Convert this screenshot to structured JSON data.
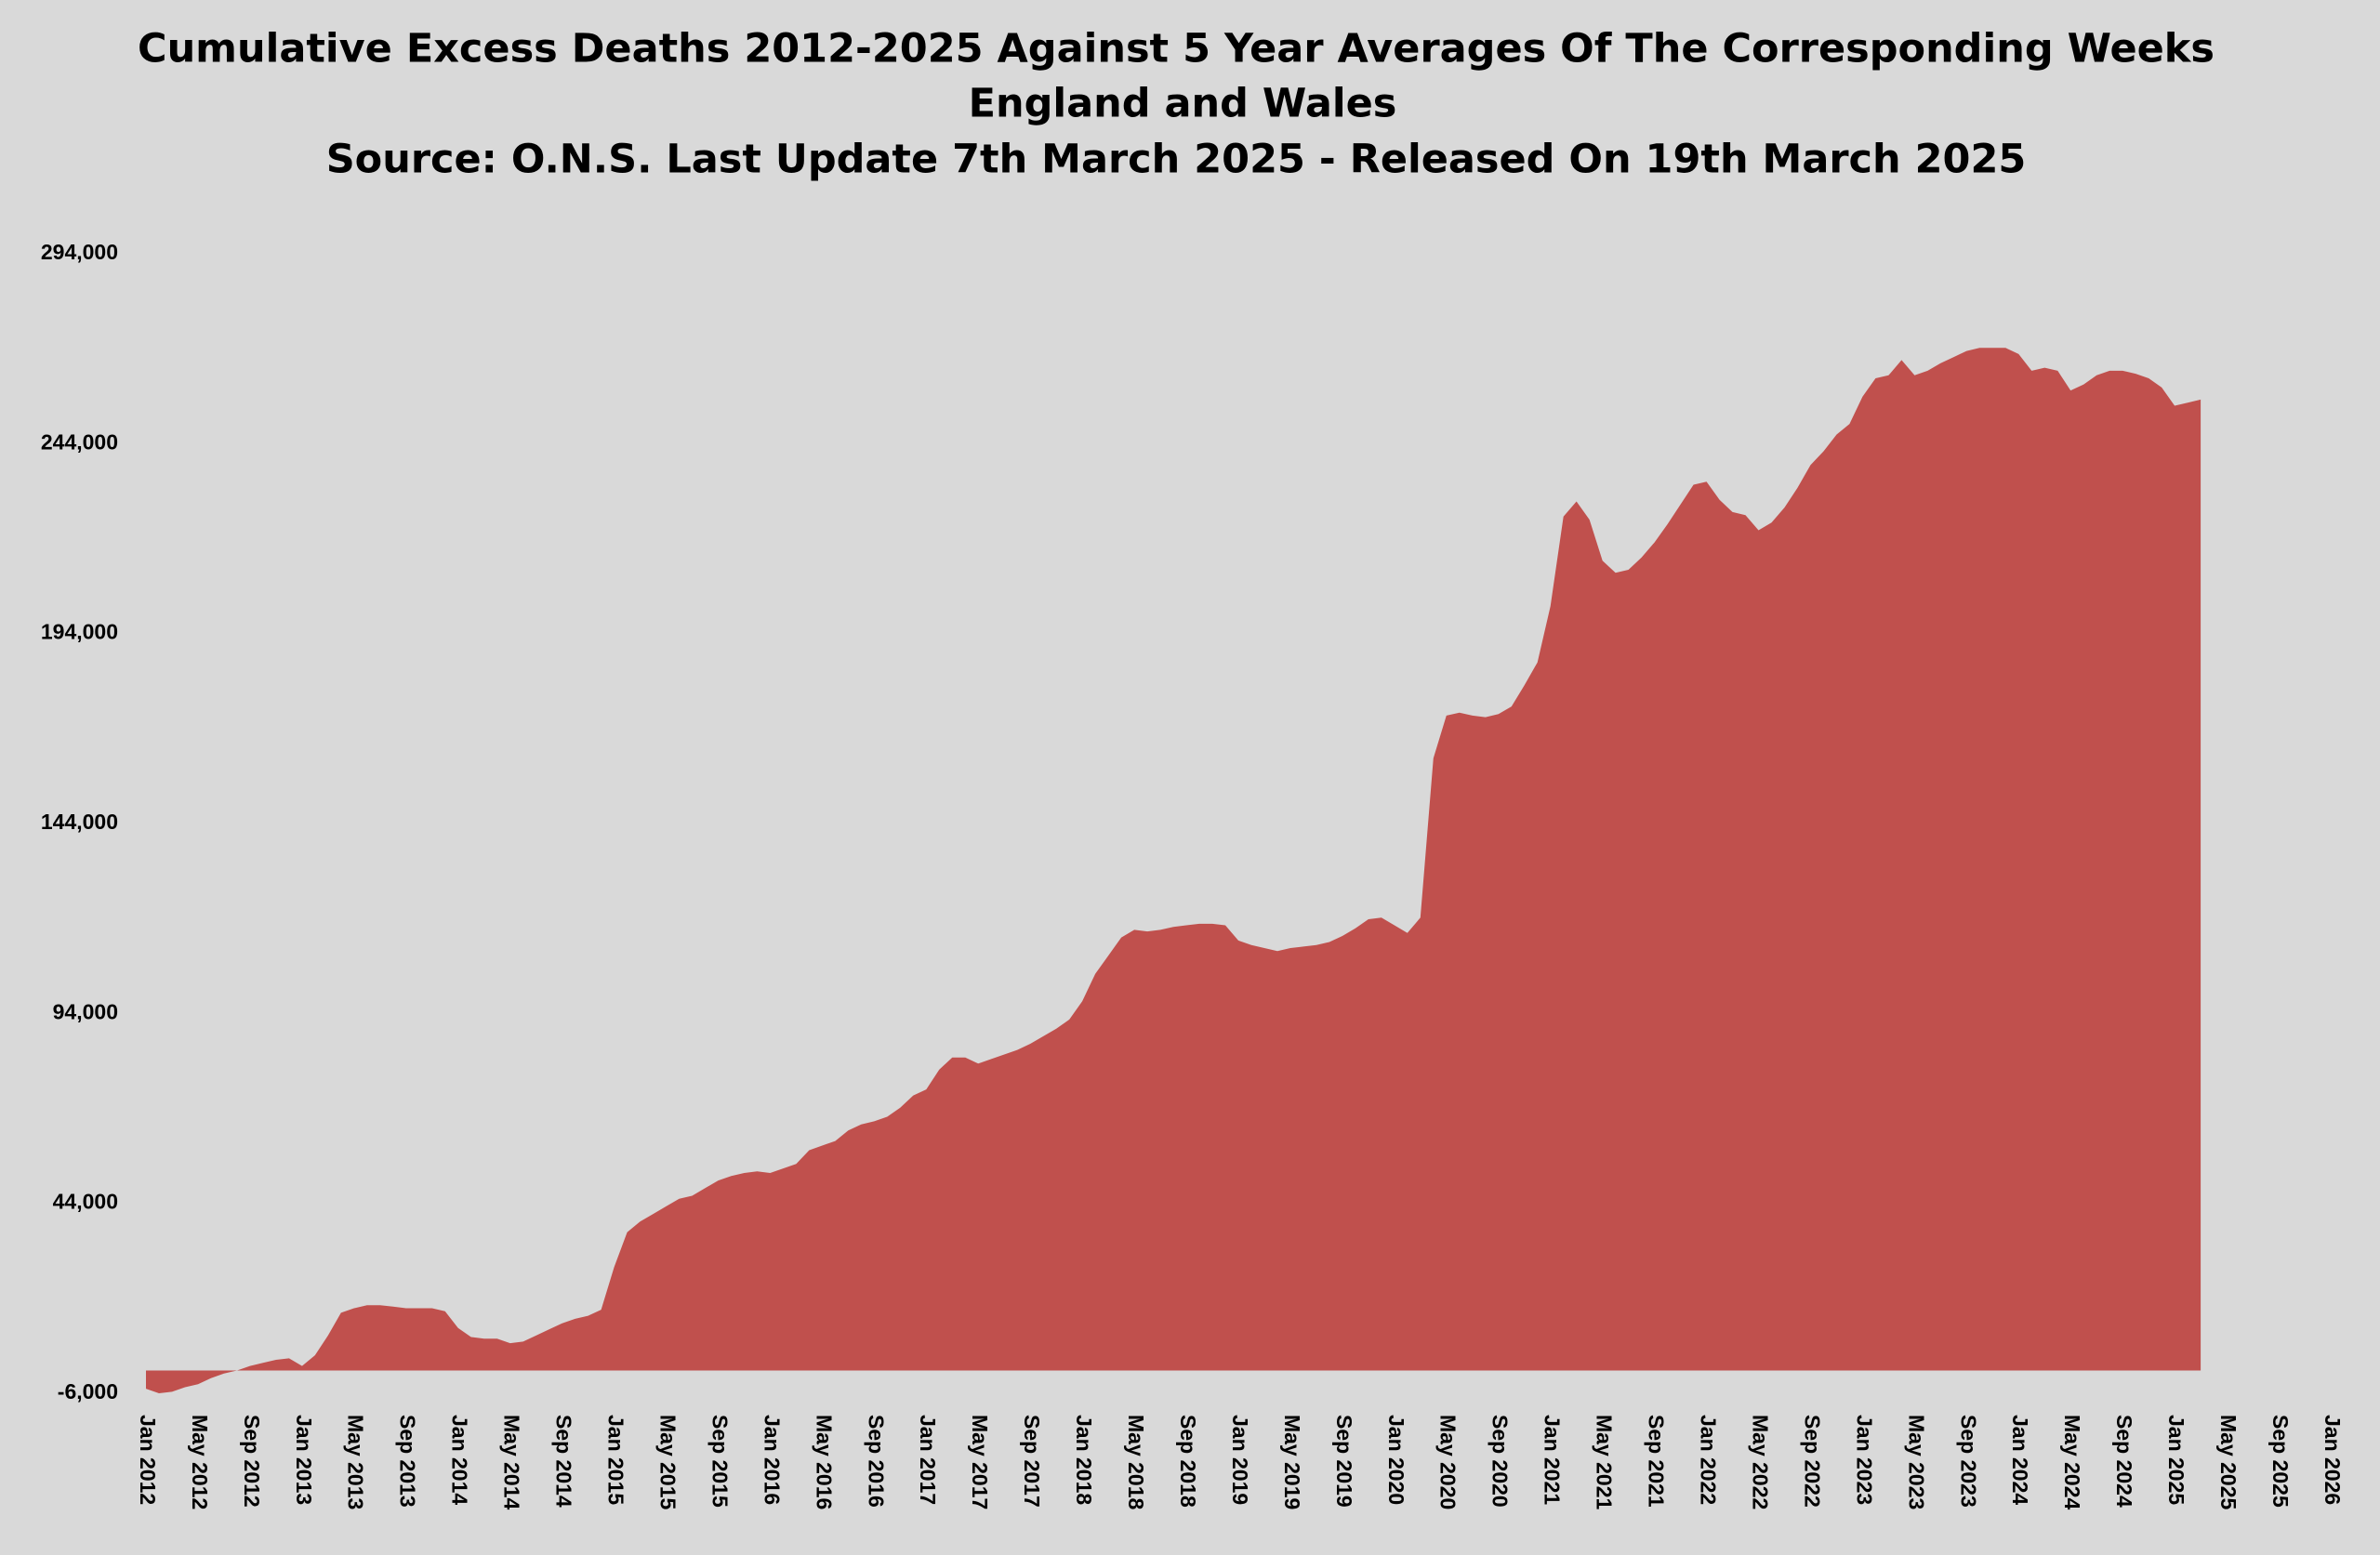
{
  "chart_data": {
    "type": "area",
    "title": [
      "Cumulative Excess Deaths 2012-2025 Against 5 Year Averages Of The Corresponding Weeks",
      "England and Wales",
      "Source: O.N.S. Last Update 7th March 2025 - Released On 19th March 2025"
    ],
    "x": [
      "Jan 2012",
      "Feb 2012",
      "Mar 2012",
      "Apr 2012",
      "May 2012",
      "Jun 2012",
      "Jul 2012",
      "Aug 2012",
      "Sep 2012",
      "Oct 2012",
      "Nov 2012",
      "Dec 2012",
      "Jan 2013",
      "Feb 2013",
      "Mar 2013",
      "Apr 2013",
      "May 2013",
      "Jun 2013",
      "Jul 2013",
      "Aug 2013",
      "Sep 2013",
      "Oct 2013",
      "Nov 2013",
      "Dec 2013",
      "Jan 2014",
      "Feb 2014",
      "Mar 2014",
      "Apr 2014",
      "May 2014",
      "Jun 2014",
      "Jul 2014",
      "Aug 2014",
      "Sep 2014",
      "Oct 2014",
      "Nov 2014",
      "Dec 2014",
      "Jan 2015",
      "Feb 2015",
      "Mar 2015",
      "Apr 2015",
      "May 2015",
      "Jun 2015",
      "Jul 2015",
      "Aug 2015",
      "Sep 2015",
      "Oct 2015",
      "Nov 2015",
      "Dec 2015",
      "Jan 2016",
      "Feb 2016",
      "Mar 2016",
      "Apr 2016",
      "May 2016",
      "Jun 2016",
      "Jul 2016",
      "Aug 2016",
      "Sep 2016",
      "Oct 2016",
      "Nov 2016",
      "Dec 2016",
      "Jan 2017",
      "Feb 2017",
      "Mar 2017",
      "Apr 2017",
      "May 2017",
      "Jun 2017",
      "Jul 2017",
      "Aug 2017",
      "Sep 2017",
      "Oct 2017",
      "Nov 2017",
      "Dec 2017",
      "Jan 2018",
      "Feb 2018",
      "Mar 2018",
      "Apr 2018",
      "May 2018",
      "Jun 2018",
      "Jul 2018",
      "Aug 2018",
      "Sep 2018",
      "Oct 2018",
      "Nov 2018",
      "Dec 2018",
      "Jan 2019",
      "Feb 2019",
      "Mar 2019",
      "Apr 2019",
      "May 2019",
      "Jun 2019",
      "Jul 2019",
      "Aug 2019",
      "Sep 2019",
      "Oct 2019",
      "Nov 2019",
      "Dec 2019",
      "Jan 2020",
      "Feb 2020",
      "Mar 2020",
      "Apr 2020",
      "May 2020",
      "Jun 2020",
      "Jul 2020",
      "Aug 2020",
      "Sep 2020",
      "Oct 2020",
      "Nov 2020",
      "Dec 2020",
      "Jan 2021",
      "Feb 2021",
      "Mar 2021",
      "Apr 2021",
      "May 2021",
      "Jun 2021",
      "Jul 2021",
      "Aug 2021",
      "Sep 2021",
      "Oct 2021",
      "Nov 2021",
      "Dec 2021",
      "Jan 2022",
      "Feb 2022",
      "Mar 2022",
      "Apr 2022",
      "May 2022",
      "Jun 2022",
      "Jul 2022",
      "Aug 2022",
      "Sep 2022",
      "Oct 2022",
      "Nov 2022",
      "Dec 2022",
      "Jan 2023",
      "Feb 2023",
      "Mar 2023",
      "Apr 2023",
      "May 2023",
      "Jun 2023",
      "Jul 2023",
      "Aug 2023",
      "Sep 2023",
      "Oct 2023",
      "Nov 2023",
      "Dec 2023",
      "Jan 2024",
      "Feb 2024",
      "Mar 2024",
      "Apr 2024",
      "May 2024",
      "Jun 2024",
      "Jul 2024",
      "Aug 2024",
      "Sep 2024",
      "Oct 2024",
      "Nov 2024",
      "Dec 2024",
      "Jan 2025",
      "Feb 2025",
      "Mar 2025"
    ],
    "values": [
      -4800,
      -6000,
      -5600,
      -4400,
      -3600,
      -2000,
      -800,
      0,
      1200,
      2000,
      2800,
      3200,
      1200,
      4000,
      9200,
      15200,
      16400,
      17200,
      17200,
      16800,
      16400,
      16400,
      16400,
      15600,
      11200,
      8800,
      8400,
      8400,
      7200,
      7600,
      9200,
      10800,
      12400,
      13600,
      14400,
      16000,
      27200,
      36400,
      39200,
      41200,
      43200,
      45200,
      46000,
      48000,
      50000,
      51200,
      52000,
      52400,
      52000,
      53200,
      54400,
      58000,
      59200,
      60400,
      63200,
      64800,
      65600,
      66800,
      69200,
      72400,
      74000,
      79200,
      82400,
      82400,
      80800,
      82000,
      83200,
      84400,
      86000,
      88000,
      90000,
      92400,
      97200,
      104400,
      109200,
      114000,
      116000,
      115600,
      116000,
      116800,
      117200,
      117600,
      117600,
      117200,
      113200,
      112000,
      111200,
      110400,
      111200,
      111600,
      112000,
      112800,
      114400,
      116400,
      118800,
      119200,
      117200,
      115200,
      119200,
      161200,
      172400,
      173200,
      172400,
      172000,
      172800,
      174800,
      180400,
      186400,
      201200,
      224800,
      228800,
      224000,
      213200,
      210000,
      210800,
      214000,
      218000,
      222800,
      228000,
      233200,
      234000,
      229200,
      226000,
      225200,
      221200,
      223200,
      227200,
      232400,
      238400,
      242000,
      246400,
      249200,
      256400,
      261200,
      262000,
      266000,
      262000,
      263200,
      265200,
      266800,
      268400,
      269200,
      269200,
      269200,
      267600,
      263200,
      264000,
      263200,
      258000,
      259600,
      262000,
      263200,
      263200,
      262400,
      261200,
      258800,
      254000,
      254800,
      255600
    ],
    "color": "#c0504d",
    "xlim": [
      "Jan 2012",
      "Jan 2026"
    ],
    "xticks": [
      "Jan 2012",
      "May 2012",
      "Sep 2012",
      "Jan 2013",
      "May 2013",
      "Sep 2013",
      "Jan 2014",
      "May 2014",
      "Sep 2014",
      "Jan 2015",
      "May 2015",
      "Sep 2015",
      "Jan 2016",
      "May 2016",
      "Sep 2016",
      "Jan 2017",
      "May 2017",
      "Sep 2017",
      "Jan 2018",
      "May 2018",
      "Sep 2018",
      "Jan 2019",
      "May 2019",
      "Sep 2019",
      "Jan 2020",
      "May 2020",
      "Sep 2020",
      "Jan 2021",
      "May 2021",
      "Sep 2021",
      "Jan 2022",
      "May 2022",
      "Sep 2022",
      "Jan 2023",
      "May 2023",
      "Sep 2023",
      "Jan 2024",
      "May 2024",
      "Sep 2024",
      "Jan 2025",
      "May 2025",
      "Sep 2025",
      "Jan 2026"
    ],
    "ylim": [
      -6000,
      294000
    ],
    "yticks": [
      {
        "value": -6000,
        "label": "-6,000"
      },
      {
        "value": 44000,
        "label": "44,000"
      },
      {
        "value": 94000,
        "label": "94,000"
      },
      {
        "value": 144000,
        "label": "144,000"
      },
      {
        "value": 194000,
        "label": "194,000"
      },
      {
        "value": 244000,
        "label": "244,000"
      },
      {
        "value": 294000,
        "label": "294,000"
      }
    ],
    "grid": false
  }
}
